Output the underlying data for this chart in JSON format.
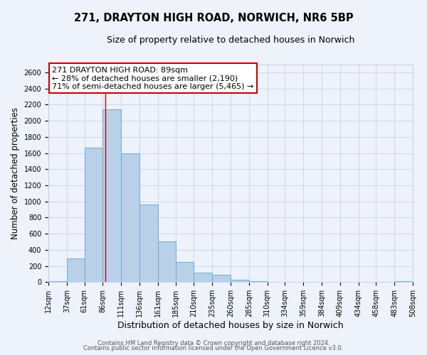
{
  "title1": "271, DRAYTON HIGH ROAD, NORWICH, NR6 5BP",
  "title2": "Size of property relative to detached houses in Norwich",
  "xlabel": "Distribution of detached houses by size in Norwich",
  "ylabel": "Number of detached properties",
  "bin_labels": [
    "12sqm",
    "37sqm",
    "61sqm",
    "86sqm",
    "111sqm",
    "136sqm",
    "161sqm",
    "185sqm",
    "210sqm",
    "235sqm",
    "260sqm",
    "285sqm",
    "310sqm",
    "334sqm",
    "359sqm",
    "384sqm",
    "409sqm",
    "434sqm",
    "458sqm",
    "483sqm",
    "508sqm"
  ],
  "bin_edges": [
    12,
    37,
    61,
    86,
    111,
    136,
    161,
    185,
    210,
    235,
    260,
    285,
    310,
    334,
    359,
    384,
    409,
    434,
    458,
    483,
    508
  ],
  "bar_heights": [
    10,
    295,
    1670,
    2140,
    1600,
    965,
    505,
    250,
    120,
    95,
    30,
    10,
    5,
    5,
    5,
    5,
    5,
    5,
    5,
    10
  ],
  "bar_color": "#b8d0e8",
  "bar_edge_color": "#6baed6",
  "property_line_x": 89,
  "annotation_title": "271 DRAYTON HIGH ROAD: 89sqm",
  "annotation_line1": "← 28% of detached houses are smaller (2,190)",
  "annotation_line2": "71% of semi-detached houses are larger (5,465) →",
  "annotation_box_color": "#ffffff",
  "annotation_box_edge_color": "#cc0000",
  "vline_color": "#cc0000",
  "ylim_max": 2700,
  "yticks": [
    0,
    200,
    400,
    600,
    800,
    1000,
    1200,
    1400,
    1600,
    1800,
    2000,
    2200,
    2400,
    2600
  ],
  "footer1": "Contains HM Land Registry data © Crown copyright and database right 2024.",
  "footer2": "Contains public sector information licensed under the Open Government Licence v3.0.",
  "background_color": "#eef2fa",
  "grid_color": "#c8d4e8",
  "title_fontsize": 10.5,
  "subtitle_fontsize": 9,
  "ylabel_fontsize": 8.5,
  "xlabel_fontsize": 9,
  "tick_fontsize": 7,
  "annot_fontsize": 8,
  "footer_fontsize": 6
}
